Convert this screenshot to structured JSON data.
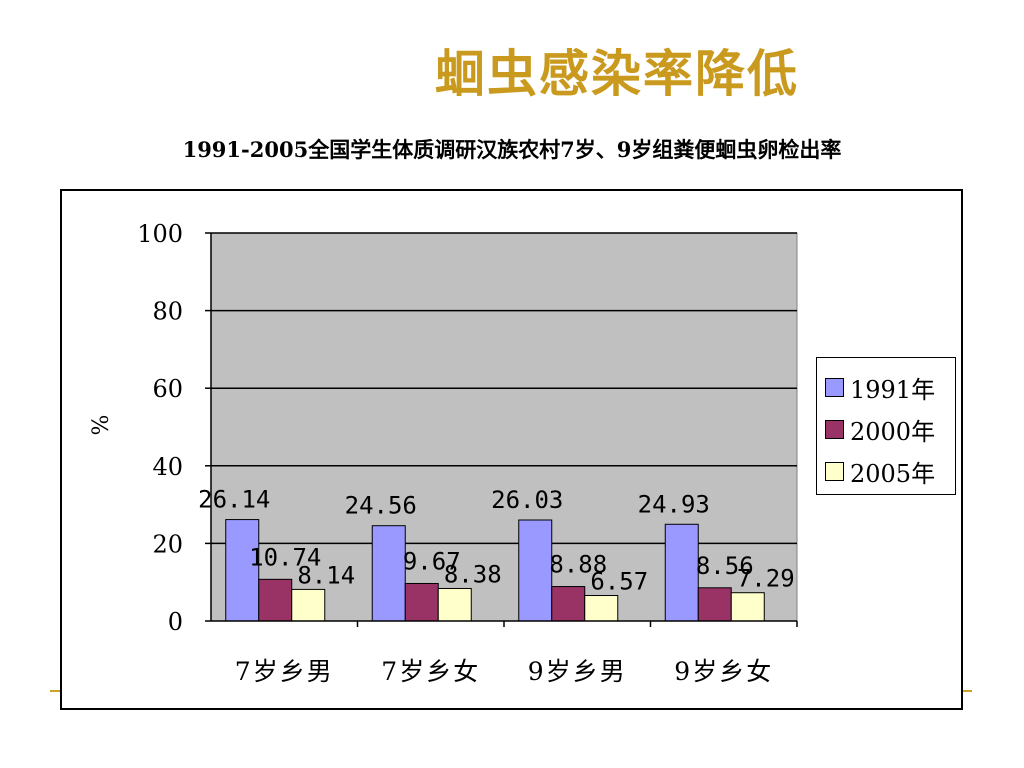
{
  "slide": {
    "title": "蛔虫感染率降低",
    "subtitle": "1991-2005全国学生体质调研汉族农村7岁、9岁组粪便蛔虫卵检出率"
  },
  "chart_data": {
    "type": "bar",
    "ylabel": "%",
    "ylim": [
      0,
      100
    ],
    "yticks": [
      0,
      20,
      40,
      60,
      80,
      100
    ],
    "grid": true,
    "legend_position": "right",
    "categories": [
      "7岁乡男",
      "7岁乡女",
      "9岁乡男",
      "9岁乡女"
    ],
    "series": [
      {
        "name": "1991年",
        "color": "#9999ff",
        "values": [
          26.14,
          24.56,
          26.03,
          24.93
        ]
      },
      {
        "name": "2000年",
        "color": "#993366",
        "values": [
          10.74,
          9.67,
          8.88,
          8.56
        ]
      },
      {
        "name": "2005年",
        "color": "#ffffcc",
        "values": [
          8.14,
          8.38,
          6.57,
          7.29
        ]
      }
    ],
    "plot_background": "#c0c0c0"
  }
}
